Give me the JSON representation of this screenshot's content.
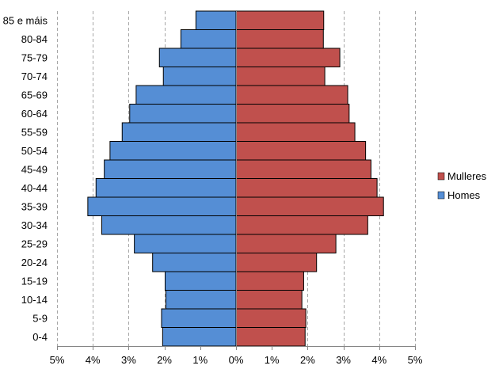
{
  "chart_data": {
    "type": "bar",
    "orientation": "horizontal",
    "layout": "population-pyramid",
    "categories": [
      "0-4",
      "5-9",
      "10-14",
      "15-19",
      "20-24",
      "25-29",
      "30-34",
      "35-39",
      "40-44",
      "45-49",
      "50-54",
      "55-59",
      "60-64",
      "65-69",
      "70-74",
      "75-79",
      "80-84",
      "85 e máis"
    ],
    "series": [
      {
        "name": "Homes",
        "color": "#558ED5",
        "side": "left",
        "values": [
          2.05,
          2.08,
          1.96,
          1.98,
          2.33,
          2.84,
          3.75,
          4.14,
          3.91,
          3.68,
          3.52,
          3.18,
          2.97,
          2.79,
          2.03,
          2.14,
          1.54,
          1.12
        ]
      },
      {
        "name": "Mulleres",
        "color": "#C0504D",
        "side": "right",
        "values": [
          1.93,
          1.95,
          1.84,
          1.89,
          2.25,
          2.79,
          3.68,
          4.12,
          3.94,
          3.77,
          3.62,
          3.32,
          3.16,
          3.12,
          2.48,
          2.9,
          2.44,
          2.45
        ]
      }
    ],
    "xlim": [
      -5,
      5
    ],
    "x_ticks": [
      {
        "value": -5,
        "label": "5%"
      },
      {
        "value": -4,
        "label": "4%"
      },
      {
        "value": -3,
        "label": "3%"
      },
      {
        "value": -2,
        "label": "2%"
      },
      {
        "value": -1,
        "label": "1%"
      },
      {
        "value": 0,
        "label": "0%"
      },
      {
        "value": 1,
        "label": "1%"
      },
      {
        "value": 2,
        "label": "2%"
      },
      {
        "value": 3,
        "label": "3%"
      },
      {
        "value": 4,
        "label": "4%"
      },
      {
        "value": 5,
        "label": "5%"
      }
    ],
    "grid": {
      "vertical": true,
      "style": "dashed"
    },
    "legend": {
      "position": "right",
      "order": [
        "Mulleres",
        "Homes"
      ]
    },
    "title": "",
    "xlabel": "",
    "ylabel": ""
  }
}
